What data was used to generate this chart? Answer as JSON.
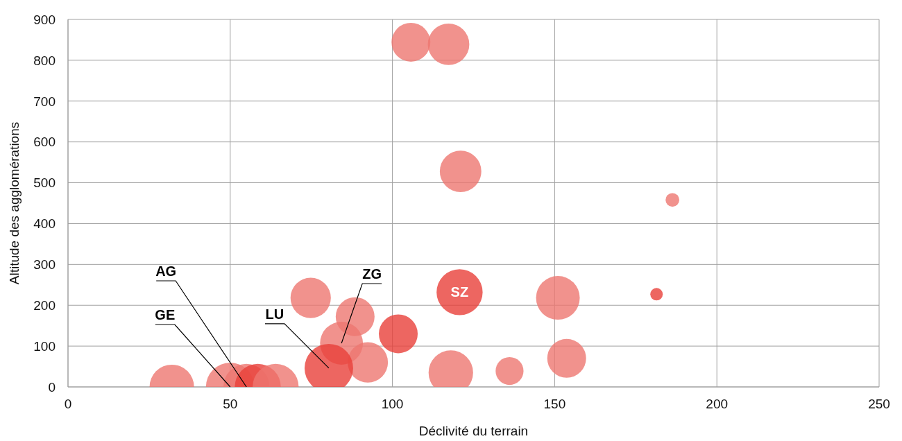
{
  "chart_data": {
    "type": "bubble",
    "xlabel": "Déclivité du terrain",
    "ylabel": "Altitude des agglomérations",
    "xlim": [
      0,
      250
    ],
    "xticks": [
      0,
      50,
      100,
      150,
      200,
      250
    ],
    "ylim": [
      0,
      900
    ],
    "yticks": [
      0,
      100,
      200,
      300,
      400,
      500,
      600,
      700,
      800,
      900
    ],
    "grid": true,
    "x": [
      32,
      50,
      55,
      58.5,
      64,
      74.8,
      88.5,
      84.3,
      92.4,
      80.4,
      101.8,
      105.7,
      117.3,
      121,
      120.7,
      118,
      136.1,
      151,
      153.7,
      181.4,
      186.3
    ],
    "values": [
      0,
      0,
      0,
      0,
      0,
      218,
      172,
      107,
      60,
      46,
      130,
      844,
      839,
      528,
      232,
      35,
      39,
      218,
      70,
      227,
      458
    ],
    "sizes": [
      0.84,
      1,
      0.9,
      0.9,
      0.9,
      0.69,
      0.64,
      0.78,
      0.69,
      1,
      0.64,
      0.64,
      0.73,
      0.73,
      0.9,
      0.84,
      0.33,
      0.81,
      0.64,
      0.066,
      0.08
    ],
    "colors": [
      "#ee7770",
      "#ee7770",
      "#ee7770",
      "#e8403a",
      "#ee7770",
      "#ee7770",
      "#ee7770",
      "#ee7770",
      "#ee7770",
      "#e8403a",
      "#e8403a",
      "#ee7770",
      "#ee7770",
      "#ee7770",
      "#e8403a",
      "#ee7770",
      "#ee7770",
      "#ee7770",
      "#ee7770",
      "#e8403a",
      "#ee7770"
    ],
    "annotations": [
      {
        "text": "AG",
        "x": 55,
        "y": 0
      },
      {
        "text": "GE",
        "x": 50,
        "y": 0
      },
      {
        "text": "LU",
        "x": 80.4,
        "y": 46
      },
      {
        "text": "ZG",
        "x": 84.3,
        "y": 107
      },
      {
        "text": "SZ",
        "x": 120.7,
        "y": 232
      }
    ]
  }
}
